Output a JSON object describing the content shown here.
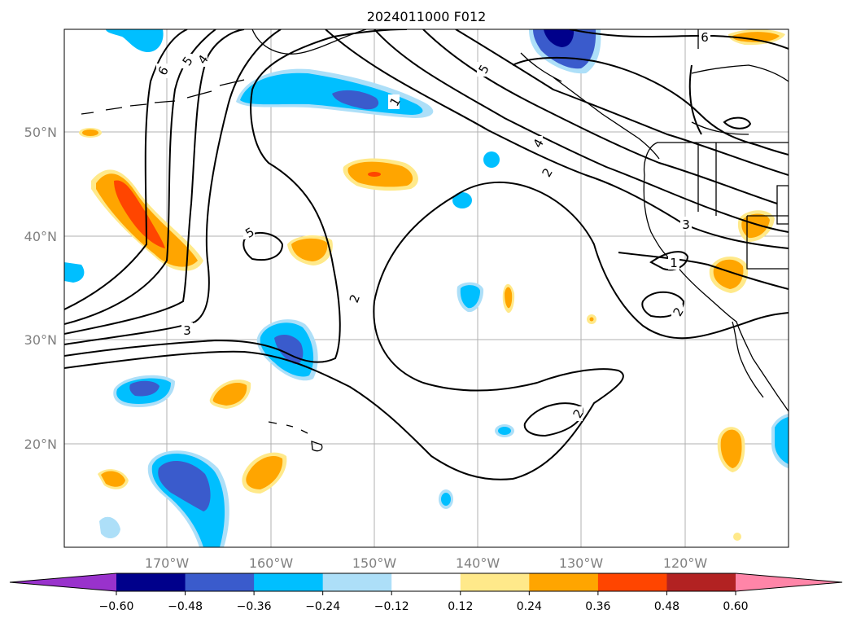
{
  "title": "2024011000 F012",
  "lat_labels": [
    "50°N",
    "40°N",
    "30°N",
    "20°N"
  ],
  "lon_labels": [
    "170°W",
    "160°W",
    "150°W",
    "140°W",
    "130°W",
    "120°W"
  ],
  "colorbar": {
    "ticks": [
      "−0.60",
      "−0.48",
      "−0.36",
      "−0.24",
      "−0.12",
      "0.12",
      "0.24",
      "0.36",
      "0.48",
      "0.60"
    ],
    "colors": [
      "#9932CC",
      "#00008B",
      "#3A5BCC",
      "#00BFFF",
      "#ADDFF8",
      "#FFFFFF",
      "#FFE98A",
      "#FFA500",
      "#FF4500",
      "#B22222",
      "#FF85A8"
    ]
  },
  "contour_labels": [
    "6",
    "5",
    "4",
    "1",
    "5",
    "4",
    "2",
    "5",
    "3",
    "1",
    "2",
    "3",
    "2",
    "6",
    "2"
  ]
}
